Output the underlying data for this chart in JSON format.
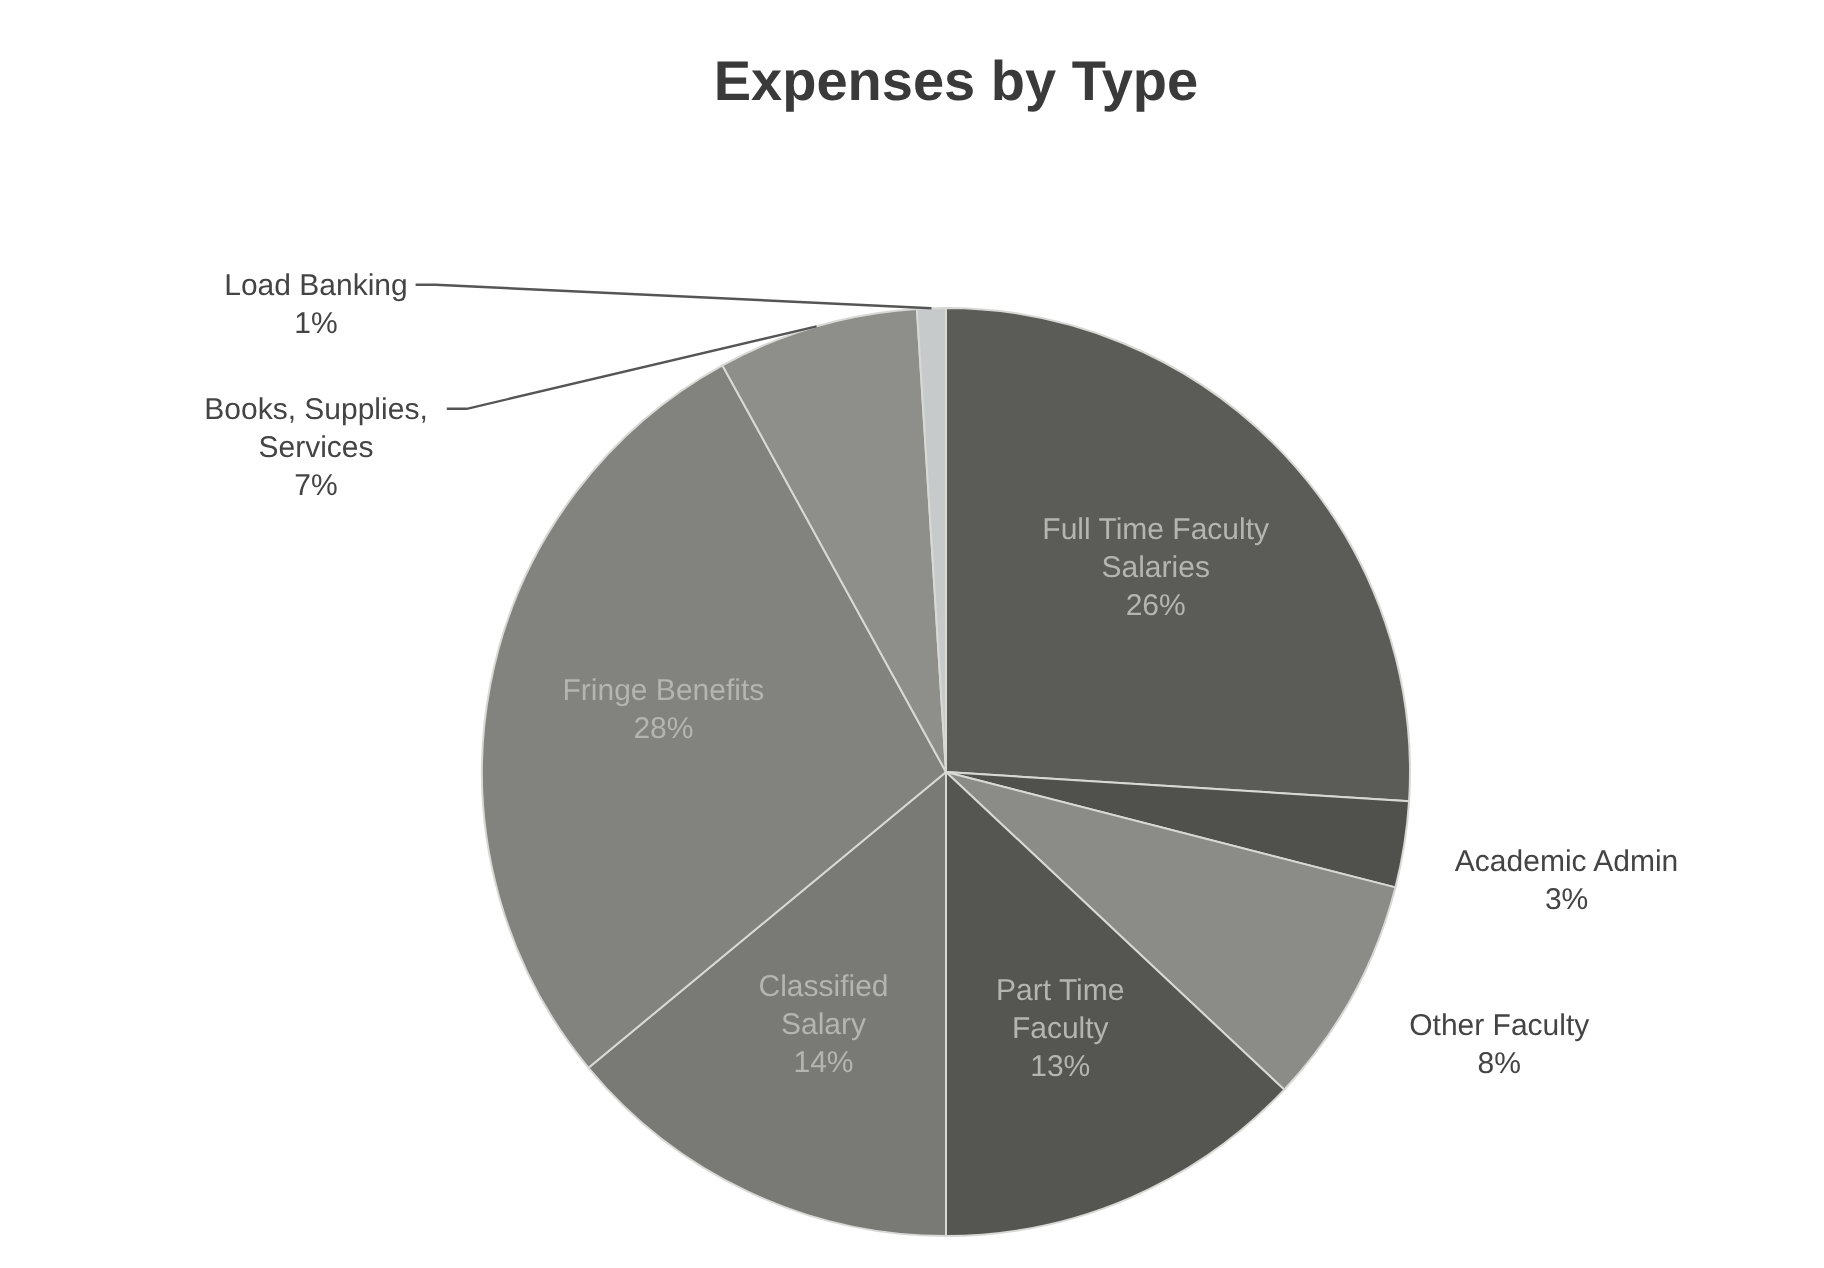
{
  "chart_data": {
    "type": "pie",
    "title": "Expenses by Type",
    "categories": [
      "Full Time Faculty Salaries",
      "Academic Admin",
      "Other Faculty",
      "Part Time Faculty",
      "Classified Salary",
      "Fringe Benefits",
      "Books, Supplies, Services",
      "Load Banking"
    ],
    "values": [
      26,
      3,
      8,
      13,
      14,
      28,
      7,
      1
    ],
    "value_labels": [
      "26%",
      "3%",
      "8%",
      "13%",
      "14%",
      "28%",
      "7%",
      "1%"
    ],
    "colors": [
      "#5b5b57",
      "#50504c",
      "#8b8b87",
      "#555551",
      "#797975",
      "#82827e",
      "#8e8e8a",
      "#c6caca"
    ]
  }
}
